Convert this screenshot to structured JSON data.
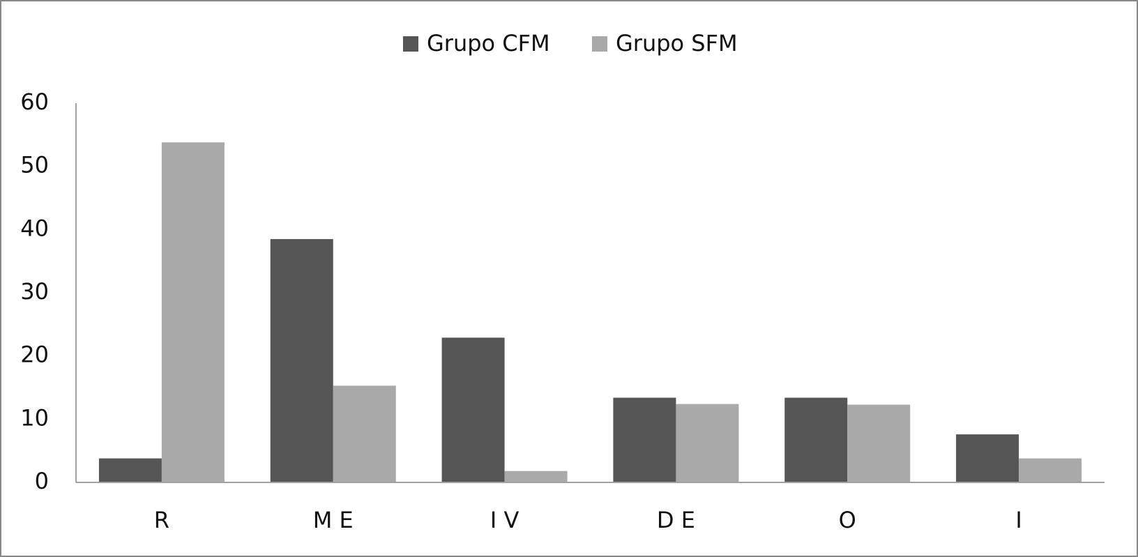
{
  "chart_data": {
    "type": "bar",
    "categories": [
      "R",
      "M E",
      "I V",
      "D E",
      "O",
      "I"
    ],
    "series": [
      {
        "name": "Grupo CFM",
        "color": "#555555",
        "values": [
          3.8,
          38.5,
          22.9,
          13.4,
          13.4,
          7.6
        ]
      },
      {
        "name": "Grupo SFM",
        "color": "#a9a9a9",
        "values": [
          53.8,
          15.3,
          1.8,
          12.4,
          12.3,
          3.8
        ]
      }
    ],
    "ylim": [
      0,
      60
    ],
    "yticks": [
      0,
      10,
      20,
      30,
      40,
      50,
      60
    ],
    "grid": false,
    "legend": "top"
  }
}
